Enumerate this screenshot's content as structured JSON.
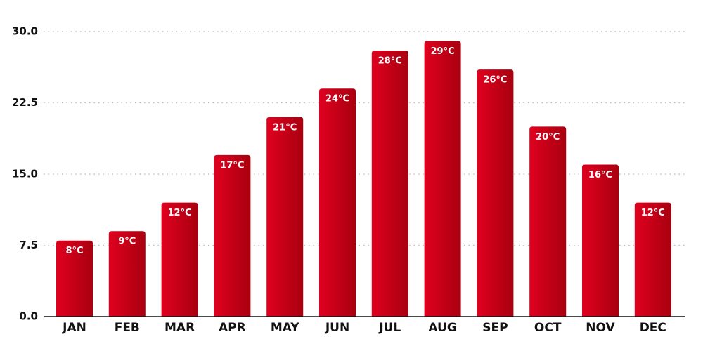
{
  "chart_data": {
    "type": "bar",
    "categories": [
      "JAN",
      "FEB",
      "MAR",
      "APR",
      "MAY",
      "JUN",
      "JUL",
      "AUG",
      "SEP",
      "OCT",
      "NOV",
      "DEC"
    ],
    "values": [
      8,
      9,
      12,
      17,
      21,
      24,
      28,
      29,
      26,
      20,
      16,
      12
    ],
    "value_labels": [
      "8°C",
      "9°C",
      "12°C",
      "17°C",
      "21°C",
      "24°C",
      "28°C",
      "29°C",
      "26°C",
      "20°C",
      "16°C",
      "12°C"
    ],
    "color": "#d0021b",
    "ylim": [
      0,
      30
    ],
    "yticks": [
      {
        "value": 0,
        "label": "0.0"
      },
      7.5,
      {
        "value": 15,
        "label": "15.0"
      },
      22.5,
      {
        "value": 30,
        "label": "30.0"
      }
    ],
    "grid": true
  }
}
